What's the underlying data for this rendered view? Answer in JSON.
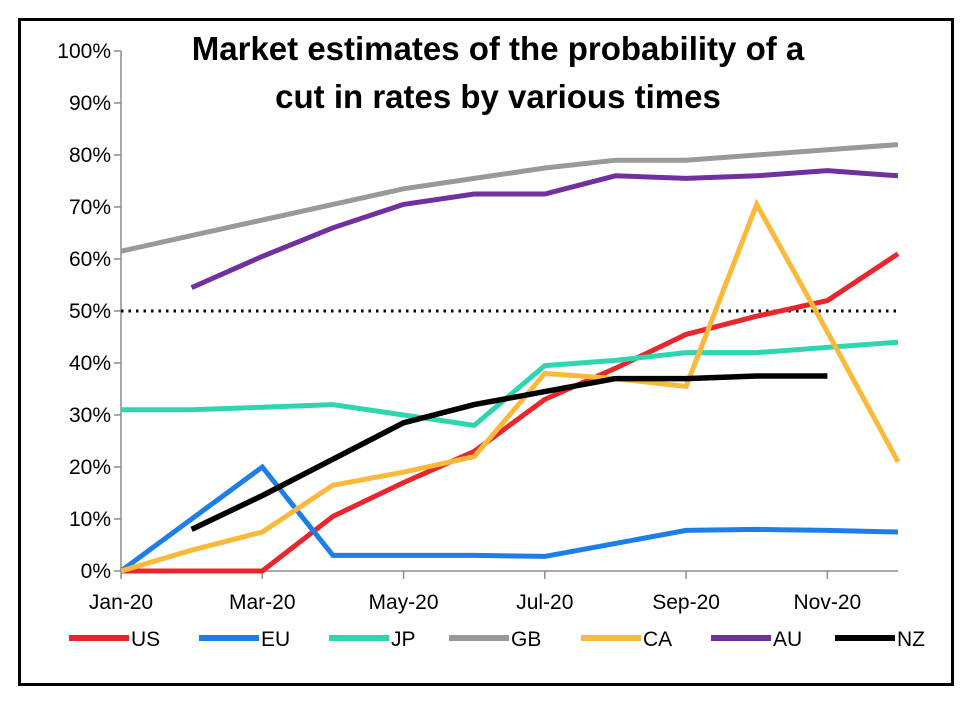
{
  "chart_data": {
    "type": "line",
    "title_lines": [
      "Market estimates of the probability of a",
      "cut in rates by various times"
    ],
    "title": "Market estimates of the probability of a cut in rates by various times",
    "xlabel": "",
    "ylabel": "",
    "x": [
      "Jan-20",
      "Feb-20",
      "Mar-20",
      "Apr-20",
      "May-20",
      "Jun-20",
      "Jul-20",
      "Aug-20",
      "Sep-20",
      "Oct-20",
      "Nov-20",
      "Dec-20"
    ],
    "x_tick_labels": [
      "Jan-20",
      "Mar-20",
      "May-20",
      "Jul-20",
      "Sep-20",
      "Nov-20"
    ],
    "y_tick_labels": [
      "0%",
      "10%",
      "20%",
      "30%",
      "40%",
      "50%",
      "60%",
      "70%",
      "80%",
      "90%",
      "100%"
    ],
    "ylim": [
      0,
      100
    ],
    "reference_line": {
      "value": 50,
      "style": "dotted"
    },
    "legend_position": "bottom",
    "series": [
      {
        "name": "US",
        "color": "#e8262b",
        "values": [
          0,
          0,
          0,
          10.5,
          17,
          23,
          33,
          39,
          45.5,
          49,
          52,
          61
        ]
      },
      {
        "name": "EU",
        "color": "#1e7ee8",
        "values": [
          0,
          10,
          20,
          3,
          3,
          3,
          2.8,
          5.3,
          7.8,
          8,
          7.8,
          7.5
        ]
      },
      {
        "name": "JP",
        "color": "#2ed6b0",
        "values": [
          31,
          31,
          31.5,
          32,
          30,
          28,
          39.5,
          40.5,
          42,
          42,
          43,
          44
        ]
      },
      {
        "name": "GB",
        "color": "#999999",
        "values": [
          61.5,
          64.5,
          67.5,
          70.5,
          73.5,
          75.5,
          77.5,
          79,
          79,
          80,
          81,
          82
        ]
      },
      {
        "name": "CA",
        "color": "#fbb93b",
        "values": [
          0,
          4,
          7.5,
          16.5,
          19,
          22,
          38,
          37,
          35.5,
          70.5,
          46,
          21
        ]
      },
      {
        "name": "AU",
        "color": "#7030a0",
        "values": [
          null,
          54.5,
          60.5,
          66,
          70.5,
          72.5,
          72.5,
          76,
          75.5,
          76,
          77,
          76
        ]
      },
      {
        "name": "NZ",
        "color": "#000000",
        "values": [
          null,
          8,
          14.5,
          21.5,
          28.5,
          32,
          34.5,
          37,
          37,
          37.5,
          37.5,
          null
        ]
      }
    ]
  }
}
